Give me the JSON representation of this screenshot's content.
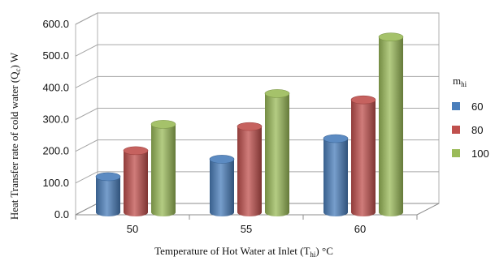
{
  "chart_data": {
    "type": "bar",
    "style": "3d-cylinder",
    "categories": [
      "50",
      "55",
      "60"
    ],
    "series": [
      {
        "name": "60",
        "color": "#4a7ebb",
        "values": [
          120,
          175,
          240
        ]
      },
      {
        "name": "80",
        "color": "#c0504d",
        "values": [
          202,
          278,
          362
        ]
      },
      {
        "name": "100",
        "color": "#9bbb59",
        "values": [
          285,
          382,
          560
        ]
      }
    ],
    "y_ticks": [
      "0.0",
      "100.0",
      "200.0",
      "300.0",
      "400.0",
      "500.0",
      "600.0"
    ],
    "ylim": [
      0,
      600
    ],
    "grid": true,
    "ylabel_main": "Heat Transfer  rate of cold  water (Q",
    "ylabel_sub": "c",
    "ylabel_tail": ") W",
    "xlabel_main": "Temperature  of Hot Water at Inlet  (T",
    "xlabel_sub": "hi",
    "xlabel_tail": ")  °C",
    "legend_title_main": "m",
    "legend_title_sub": "hi",
    "legend_position": "right"
  }
}
